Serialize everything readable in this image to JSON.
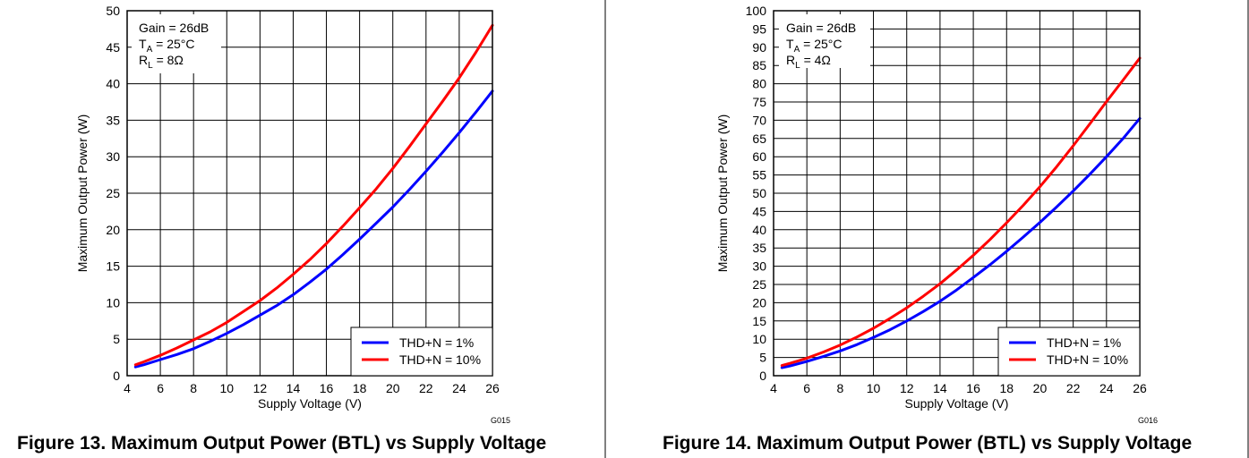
{
  "charts": [
    {
      "figure_id": "G015",
      "caption": "Figure 13. Maximum Output Power (BTL) vs Supply Voltage",
      "notes": [
        {
          "main": "Gain = 26dB",
          "sub": "",
          "rest": ""
        },
        {
          "main": "T",
          "sub": "A",
          "rest": " = 25°C"
        },
        {
          "main": "R",
          "sub": "L",
          "rest": " = 8Ω"
        }
      ]
    },
    {
      "figure_id": "G016",
      "caption": "Figure 14. Maximum Output Power (BTL) vs Supply Voltage",
      "notes": [
        {
          "main": "Gain = 26dB",
          "sub": "",
          "rest": ""
        },
        {
          "main": "T",
          "sub": "A",
          "rest": " = 25°C"
        },
        {
          "main": "R",
          "sub": "L",
          "rest": " = 4Ω"
        }
      ]
    }
  ],
  "chart_data": [
    {
      "type": "line",
      "xlabel": "Supply Voltage (V)",
      "ylabel": "Maximum Output Power (W)",
      "xlim": [
        4,
        26
      ],
      "ylim": [
        0,
        50
      ],
      "xticks": [
        4,
        6,
        8,
        10,
        12,
        14,
        16,
        18,
        20,
        22,
        24,
        26
      ],
      "yticks": [
        0,
        5,
        10,
        15,
        20,
        25,
        30,
        35,
        40,
        45,
        50
      ],
      "grid": true,
      "legend_position": "bottom-right",
      "series": [
        {
          "name": "THD+N = 1%",
          "color": "#0000ff",
          "x": [
            4.5,
            5,
            6,
            7,
            8,
            9,
            10,
            11,
            12,
            13,
            14,
            15,
            16,
            17,
            18,
            19,
            20,
            21,
            22,
            23,
            24,
            25,
            26
          ],
          "y": [
            1.2,
            1.5,
            2.2,
            2.9,
            3.7,
            4.7,
            5.8,
            7.0,
            8.3,
            9.6,
            11.1,
            12.8,
            14.6,
            16.6,
            18.7,
            20.9,
            23.1,
            25.5,
            28.0,
            30.6,
            33.3,
            36.1,
            39.0
          ]
        },
        {
          "name": "THD+N = 10%",
          "color": "#ff0000",
          "x": [
            4.5,
            5,
            6,
            7,
            8,
            9,
            10,
            11,
            12,
            13,
            14,
            15,
            16,
            17,
            18,
            19,
            20,
            21,
            22,
            23,
            24,
            25,
            26
          ],
          "y": [
            1.5,
            1.9,
            2.8,
            3.8,
            4.9,
            6.0,
            7.3,
            8.8,
            10.3,
            12.0,
            13.9,
            15.9,
            18.1,
            20.5,
            23.0,
            25.6,
            28.4,
            31.4,
            34.5,
            37.6,
            40.8,
            44.3,
            48.0
          ]
        }
      ]
    },
    {
      "type": "line",
      "xlabel": "Supply Voltage (V)",
      "ylabel": "Maximum Output Power (W)",
      "xlim": [
        4,
        26
      ],
      "ylim": [
        0,
        100
      ],
      "xticks": [
        4,
        6,
        8,
        10,
        12,
        14,
        16,
        18,
        20,
        22,
        24,
        26
      ],
      "yticks": [
        0,
        5,
        10,
        15,
        20,
        25,
        30,
        35,
        40,
        45,
        50,
        55,
        60,
        65,
        70,
        75,
        80,
        85,
        90,
        95,
        100
      ],
      "grid": true,
      "legend_position": "bottom-right",
      "series": [
        {
          "name": "THD+N = 1%",
          "color": "#0000ff",
          "x": [
            4.5,
            5,
            6,
            7,
            8,
            9,
            10,
            11,
            12,
            13,
            14,
            15,
            16,
            17,
            18,
            19,
            20,
            21,
            22,
            23,
            24,
            25,
            26
          ],
          "y": [
            2.2,
            2.7,
            3.9,
            5.3,
            6.8,
            8.5,
            10.5,
            12.6,
            15.0,
            17.6,
            20.4,
            23.5,
            26.9,
            30.4,
            34.1,
            38.0,
            42.0,
            46.2,
            50.6,
            55.2,
            60.0,
            65.0,
            70.5
          ]
        },
        {
          "name": "THD+N = 10%",
          "color": "#ff0000",
          "x": [
            4.5,
            5,
            6,
            7,
            8,
            9,
            10,
            11,
            12,
            13,
            14,
            15,
            16,
            17,
            18,
            19,
            20,
            21,
            22,
            23,
            24,
            25,
            26
          ],
          "y": [
            2.8,
            3.4,
            4.8,
            6.5,
            8.4,
            10.6,
            13.0,
            15.7,
            18.6,
            21.8,
            25.2,
            29.0,
            33.0,
            37.3,
            41.9,
            46.7,
            51.8,
            57.2,
            63.0,
            69.0,
            75.1,
            81.0,
            87.0
          ]
        }
      ]
    }
  ]
}
